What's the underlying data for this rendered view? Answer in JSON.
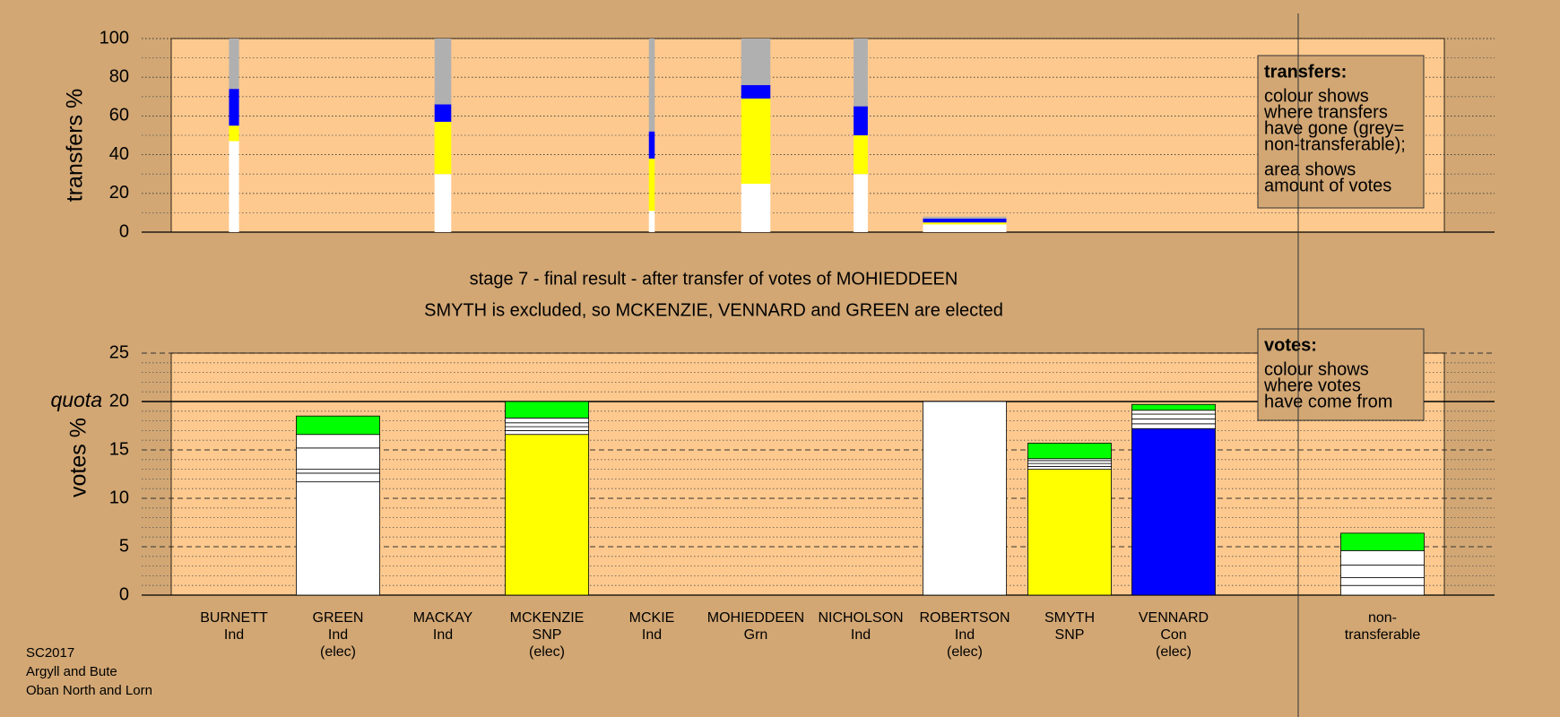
{
  "chart_data": [
    {
      "type": "bar",
      "stacked": true,
      "ylabel": "transfers %",
      "ylim": [
        0,
        100
      ],
      "yticks": [
        0,
        20,
        40,
        60,
        80,
        100
      ],
      "minor_yticks": [
        10,
        30,
        50,
        70,
        90
      ],
      "widths": [
        0.12,
        null,
        0.2,
        null,
        0.07,
        0.35,
        0.17,
        1.0,
        null,
        null,
        null
      ],
      "series": [
        {
          "color": "#ffffff",
          "values": [
            47,
            null,
            30,
            null,
            11,
            25,
            30,
            4,
            null,
            null,
            null
          ]
        },
        {
          "color": "#ffff00",
          "values": [
            8,
            null,
            27,
            null,
            27,
            44,
            20,
            1,
            null,
            null,
            null
          ]
        },
        {
          "color": "#0000ff",
          "values": [
            19,
            null,
            9,
            null,
            14,
            7,
            15,
            2,
            null,
            null,
            null
          ]
        },
        {
          "color": "#b0b0b0",
          "values": [
            26,
            null,
            34,
            null,
            48,
            24,
            35,
            1,
            null,
            null,
            null
          ]
        }
      ],
      "legend": {
        "title": "transfers:",
        "lines": [
          [
            "colour shows",
            "where transfers",
            "have gone (grey=",
            "non-transferable);"
          ],
          [
            "area shows",
            "amount of votes"
          ]
        ]
      }
    },
    {
      "type": "bar",
      "stacked": true,
      "title": [
        "stage 7 - final result - after transfer of votes of MOHIEDDEEN",
        "SMYTH is excluded, so MCKENZIE, VENNARD and GREEN are elected"
      ],
      "ylabel": "votes %",
      "ylim": [
        0,
        25
      ],
      "yticks": [
        0,
        5,
        10,
        15,
        20,
        25
      ],
      "minor_yticks": [
        1,
        2,
        3,
        4,
        6,
        7,
        8,
        9,
        11,
        12,
        13,
        14,
        16,
        17,
        18,
        19,
        21,
        22,
        23,
        24
      ],
      "quota": {
        "value": 20,
        "label": "quota"
      },
      "categories": [
        [
          "BURNETT",
          "Ind"
        ],
        [
          "GREEN",
          "Ind",
          "(elec)"
        ],
        [
          "MACKAY",
          "Ind"
        ],
        [
          "MCKENZIE",
          "SNP",
          "(elec)"
        ],
        [
          "MCKIE",
          "Ind"
        ],
        [
          "MOHIEDDEEN",
          "Grn"
        ],
        [
          "NICHOLSON",
          "Ind"
        ],
        [
          "ROBERTSON",
          "Ind",
          "(elec)"
        ],
        [
          "SMYTH",
          "SNP"
        ],
        [
          "VENNARD",
          "Con",
          "(elec)"
        ],
        [
          "non-",
          "transferable"
        ]
      ],
      "series": [
        {
          "colors": [
            "#ffffff",
            "#ffffff",
            "#ffffff",
            "#ffff00",
            "#ffffff",
            "#00ff00",
            "#ffffff",
            "#ffffff",
            "#ffff00",
            "#0000ff",
            "#ffffff"
          ],
          "values": [
            null,
            11.7,
            null,
            16.6,
            null,
            null,
            null,
            20.0,
            13.0,
            17.2,
            null
          ]
        },
        {
          "color": "#ffffff",
          "values": [
            null,
            0.9,
            null,
            0.4,
            null,
            null,
            null,
            null,
            0.3,
            0.5,
            1.0
          ]
        },
        {
          "color": "#ffffff",
          "values": [
            null,
            0.4,
            null,
            0.4,
            null,
            null,
            null,
            null,
            0.3,
            0.5,
            0.8
          ]
        },
        {
          "color": "#ffffff",
          "values": [
            null,
            2.2,
            null,
            0.4,
            null,
            null,
            null,
            null,
            0.3,
            0.5,
            1.3
          ]
        },
        {
          "color": "#ffffff",
          "values": [
            null,
            1.4,
            null,
            0.5,
            null,
            null,
            null,
            null,
            0.2,
            0.4,
            1.5
          ]
        },
        {
          "color": "#00ff00",
          "values": [
            null,
            1.9,
            null,
            1.7,
            null,
            null,
            null,
            null,
            1.6,
            0.6,
            1.8
          ]
        }
      ],
      "legend": {
        "title": "votes:",
        "lines": [
          [
            "colour shows",
            "where votes",
            "have come from"
          ]
        ]
      },
      "footer": [
        "SC2017",
        "Argyll and Bute",
        "Oban North and Lorn"
      ]
    }
  ]
}
